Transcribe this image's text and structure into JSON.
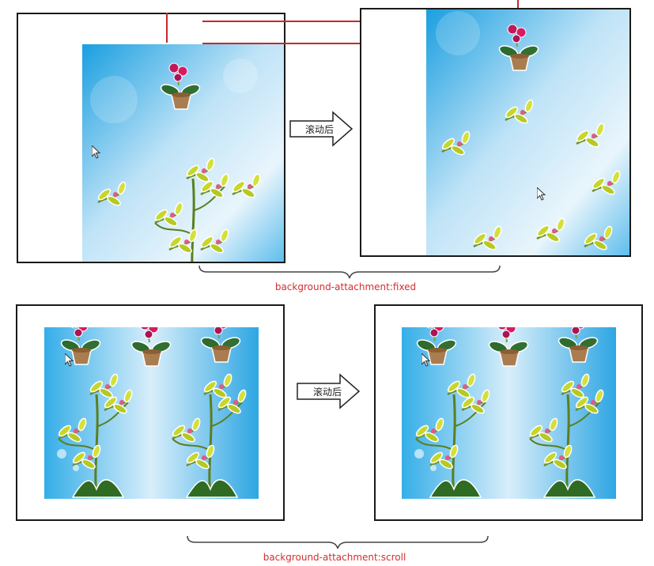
{
  "top_row": {
    "arrow_label": "滚动后",
    "caption": "background-attachment:fixed"
  },
  "bottom_row": {
    "arrow_label": "滚动后",
    "caption": "background-attachment:scroll"
  },
  "colors": {
    "caption": "#d32f2f",
    "guide_line": "#c62828",
    "frame_border": "#1a1a1a",
    "sky_light": "#e8f4fc",
    "sky_blue": "#1a9fe0",
    "petal_green": "#c8d62b",
    "orchid_pink": "#c2185b"
  },
  "icons": [
    "mouse-cursor-icon",
    "right-arrow-icon",
    "orchid-pot-icon",
    "curly-brace-icon"
  ]
}
